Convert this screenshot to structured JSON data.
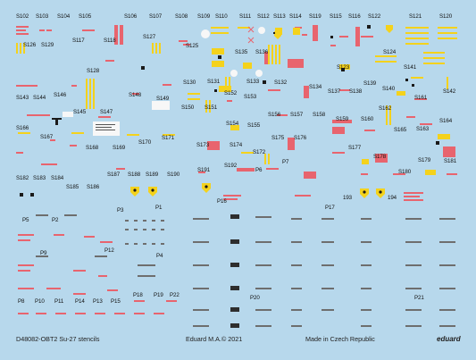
{
  "sheet": {
    "background": "#b7d8ec",
    "footer": {
      "code_name": "D48082-OBT2 Su-27 stencils",
      "copyright": "Eduard M.A.© 2021",
      "made_in": "Made in Czech Republic",
      "brand": "eduard"
    },
    "colors": {
      "red": "#e8646e",
      "yellow": "#f4d21c",
      "black": "#1a1a1a",
      "white": "#f7f7f7",
      "gray": "#6e6e6e"
    },
    "swatches": [
      "#1a1a1a",
      "#f7f7f7",
      "#e8646e",
      "#f4d21c",
      "#6e6e6e"
    ]
  },
  "labels": [
    "S102",
    "S103",
    "S104",
    "S105",
    "S106",
    "S107",
    "S108",
    "S109",
    "S110",
    "S111",
    "S112",
    "S113",
    "S114",
    "S119",
    "S115",
    "S116",
    "S122",
    "S121",
    "S120",
    "S126",
    "S129",
    "S117",
    "S118",
    "S127",
    "S125",
    "S124",
    "S135",
    "S136",
    "S128",
    "S123",
    "S141",
    "S130",
    "S131",
    "S133",
    "S132",
    "S134",
    "S137",
    "S138",
    "S139",
    "S140",
    "S143",
    "S144",
    "S146",
    "S148",
    "S149",
    "S152",
    "S153",
    "S142",
    "S161",
    "S145",
    "S147",
    "S150",
    "S151",
    "S156",
    "S157",
    "S158",
    "S162",
    "S164",
    "S166",
    "S154",
    "S155",
    "S159",
    "S160",
    "S163",
    "S165",
    "S167",
    "S168",
    "S169",
    "S170",
    "S171",
    "S172",
    "S173",
    "S174",
    "S175",
    "S176",
    "S177",
    "S178",
    "S179",
    "S181",
    "S182",
    "S183",
    "S184",
    "S187",
    "S188",
    "S189",
    "S190",
    "S191",
    "S192",
    "S180",
    "S185",
    "S186",
    "P6",
    "P7",
    "P3",
    "P1",
    "P16",
    "193",
    "194",
    "P17",
    "P5",
    "P2",
    "P9",
    "P12",
    "P4",
    "P18",
    "P19",
    "P22",
    "P20",
    "P21",
    "P8",
    "P10",
    "P11",
    "P14",
    "P13",
    "P15"
  ]
}
